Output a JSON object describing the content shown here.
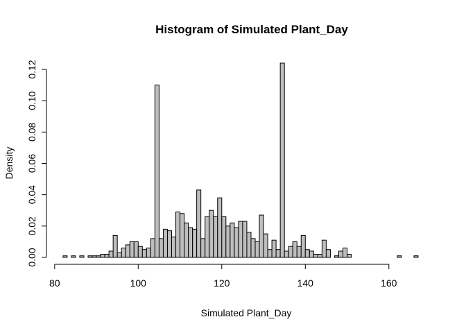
{
  "chart_data": {
    "type": "bar",
    "title": "Histogram of Simulated Plant_Day",
    "xlabel": "Simulated Plant_Day",
    "ylabel": "Density",
    "bin_width": 1,
    "bin_start": 82,
    "xlim": [
      80,
      167
    ],
    "ylim": [
      0,
      0.12
    ],
    "x_ticks": [
      80,
      100,
      120,
      140,
      160
    ],
    "y_ticks": [
      0.0,
      0.02,
      0.04,
      0.06,
      0.08,
      0.1,
      0.12
    ],
    "x_tick_labels": [
      "80",
      "100",
      "120",
      "140",
      "160"
    ],
    "y_tick_labels": [
      "0.00",
      "0.02",
      "0.04",
      "0.06",
      "0.08",
      "0.10",
      "0.12"
    ],
    "bar_fill": "#bebebe",
    "grid": false,
    "values": [
      0.001,
      0.0,
      0.001,
      0.0,
      0.001,
      0.0,
      0.001,
      0.001,
      0.001,
      0.002,
      0.002,
      0.004,
      0.014,
      0.003,
      0.006,
      0.008,
      0.01,
      0.01,
      0.007,
      0.005,
      0.006,
      0.012,
      0.11,
      0.012,
      0.018,
      0.017,
      0.013,
      0.029,
      0.028,
      0.022,
      0.019,
      0.018,
      0.043,
      0.012,
      0.026,
      0.03,
      0.026,
      0.038,
      0.026,
      0.02,
      0.022,
      0.019,
      0.023,
      0.023,
      0.016,
      0.012,
      0.01,
      0.027,
      0.015,
      0.005,
      0.011,
      0.005,
      0.124,
      0.004,
      0.007,
      0.01,
      0.007,
      0.014,
      0.005,
      0.004,
      0.002,
      0.002,
      0.011,
      0.005,
      0.0,
      0.001,
      0.004,
      0.006,
      0.002,
      0.0,
      0.0,
      0.0,
      0.0,
      0.0,
      0.0,
      0.0,
      0.0,
      0.0,
      0.0,
      0.0,
      0.001,
      0.0,
      0.0,
      0.0,
      0.001
    ]
  }
}
